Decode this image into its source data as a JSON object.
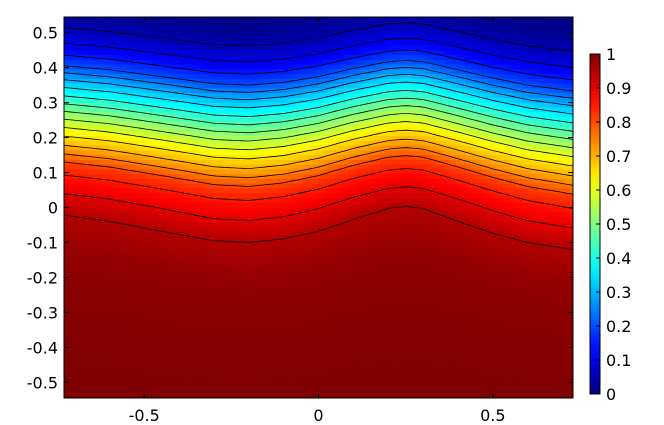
{
  "chart_data": {
    "type": "heatmap",
    "title": "",
    "xlabel": "",
    "ylabel": "",
    "xlim": [
      -0.73,
      0.73
    ],
    "ylim": [
      -0.545,
      0.545
    ],
    "x_ticks": [
      {
        "value": -0.5,
        "label": "-0.5"
      },
      {
        "value": 0,
        "label": "0"
      },
      {
        "value": 0.5,
        "label": "0.5"
      }
    ],
    "y_ticks": [
      {
        "value": 0.5,
        "label": "0.5"
      },
      {
        "value": 0.4,
        "label": "0.4"
      },
      {
        "value": 0.3,
        "label": "0.3"
      },
      {
        "value": 0.2,
        "label": "0.2"
      },
      {
        "value": 0.1,
        "label": "0.1"
      },
      {
        "value": 0,
        "label": "0"
      },
      {
        "value": -0.1,
        "label": "-0.1"
      },
      {
        "value": -0.2,
        "label": "-0.2"
      },
      {
        "value": -0.3,
        "label": "-0.3"
      },
      {
        "value": -0.4,
        "label": "-0.4"
      },
      {
        "value": -0.5,
        "label": "-0.5"
      }
    ],
    "colorbar": {
      "min": 0,
      "max": 1,
      "colormap": "jet",
      "ticks": [
        {
          "value": 1,
          "label": "1"
        },
        {
          "value": 0.9,
          "label": "0.9"
        },
        {
          "value": 0.8,
          "label": "0.8"
        },
        {
          "value": 0.7,
          "label": "0.7"
        },
        {
          "value": 0.6,
          "label": "0.6"
        },
        {
          "value": 0.5,
          "label": "0.5"
        },
        {
          "value": 0.4,
          "label": "0.4"
        },
        {
          "value": 0.3,
          "label": "0.3"
        },
        {
          "value": 0.2,
          "label": "0.2"
        },
        {
          "value": 0.1,
          "label": "0.1"
        },
        {
          "value": 0,
          "label": "0"
        }
      ]
    },
    "contour_levels": [
      0.05,
      0.1,
      0.15,
      0.2,
      0.25,
      0.3,
      0.35,
      0.4,
      0.45,
      0.5,
      0.55,
      0.6,
      0.65,
      0.7,
      0.75,
      0.8,
      0.85,
      0.9,
      0.95
    ],
    "contour_color": "#000000",
    "interface_profile": {
      "x": [
        -0.73,
        -0.6,
        -0.45,
        -0.3,
        -0.2,
        -0.1,
        0,
        0.1,
        0.2,
        0.25,
        0.3,
        0.4,
        0.5,
        0.6,
        0.73
      ],
      "y": [
        0.07,
        0.055,
        0.03,
        0.005,
        0.0,
        0.01,
        0.03,
        0.06,
        0.085,
        0.09,
        0.085,
        0.055,
        0.025,
        0.0,
        -0.02
      ]
    },
    "gradient_profile": {
      "y": [
        -0.55,
        -0.3,
        -0.2,
        -0.1,
        0.0,
        0.05,
        0.1,
        0.15,
        0.2,
        0.25,
        0.3,
        0.35,
        0.4,
        0.45,
        0.5,
        0.55
      ],
      "value": [
        1.0,
        0.99,
        0.98,
        0.95,
        0.87,
        0.82,
        0.72,
        0.63,
        0.53,
        0.42,
        0.32,
        0.2,
        0.12,
        0.06,
        0.02,
        0.0
      ]
    },
    "grid": false
  }
}
